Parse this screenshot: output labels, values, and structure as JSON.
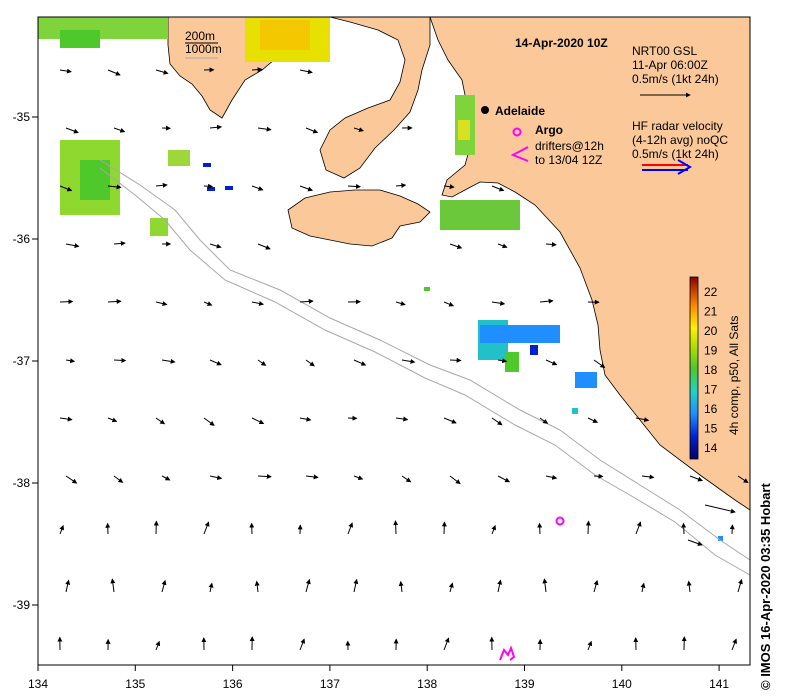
{
  "title": "14-Apr-2020 10Z",
  "city": "Adelaide",
  "depth_legend": [
    "200m",
    "1000m"
  ],
  "gsl_legend": {
    "line1": "NRT00 GSL",
    "line2": "11-Apr 06:00Z",
    "line3": "0.5m/s (1kt 24h)"
  },
  "argo_label": "Argo",
  "drifter_legend": {
    "line1": "drifters@12h",
    "line2": "to 13/04 12Z"
  },
  "radar_legend": {
    "line1": "HF radar velocity",
    "line2": "(4-12h avg) noQC",
    "line3": "0.5m/s (1kt 24h)"
  },
  "colorbar": {
    "label": "4h comp, p50, All Sats",
    "ticks": [
      "22",
      "21",
      "20",
      "19",
      "18",
      "17",
      "16",
      "15",
      "14"
    ],
    "range": [
      13.5,
      22.8
    ]
  },
  "x_ticks": [
    "134",
    "135",
    "136",
    "137",
    "138",
    "139",
    "140",
    "141"
  ],
  "y_ticks": [
    "-35",
    "-36",
    "-37",
    "-38",
    "-39"
  ],
  "credit": "© IMOS 16-Apr-2020 03:35 Hobart",
  "colors": {
    "land": "#fbc89a",
    "arrow": "#000000",
    "argo": "#ff00ff",
    "radar_red": "#ff0000",
    "radar_blue": "#0000ff",
    "isobath": "#a8a8a8"
  }
}
